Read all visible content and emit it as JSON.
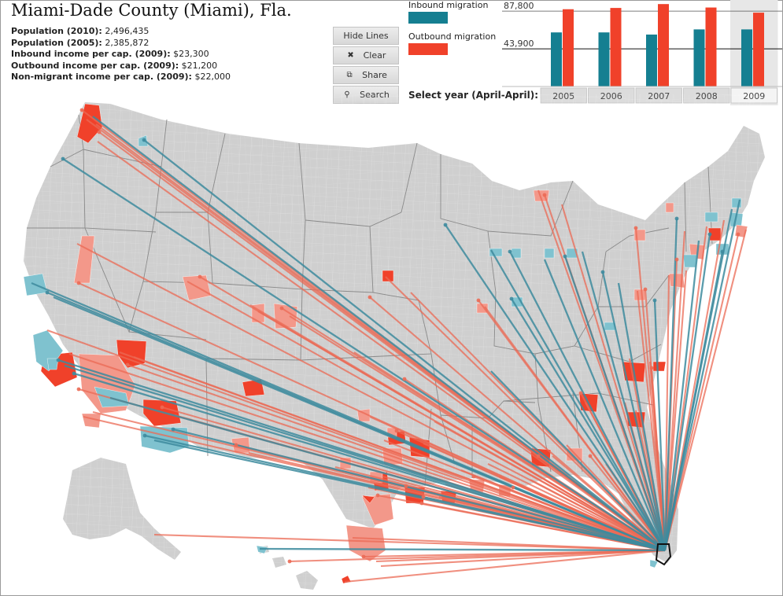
{
  "header": {
    "title": "Miami-Dade County (Miami), Fla.",
    "stats": [
      {
        "label": "Population (2010):",
        "value": "2,496,435"
      },
      {
        "label": "Population (2005):",
        "value": "2,385,872"
      },
      {
        "label": "Inbound income per cap. (2009):",
        "value": "$23,300"
      },
      {
        "label": "Outbound income per cap. (2009):",
        "value": "$21,200"
      },
      {
        "label": "Non-migrant income per cap. (2009):",
        "value": "$22,000"
      }
    ]
  },
  "controls": {
    "hide_lines": "Hide Lines",
    "clear": "Clear",
    "clear_icon": "✖",
    "share": "Share",
    "share_icon": "⧉",
    "search": "Search",
    "search_icon": "⚲"
  },
  "legend": {
    "inbound_label": "Inbound migration",
    "outbound_label": "Outbound migration",
    "inbound_color": "#157f91",
    "outbound_color": "#f0412a"
  },
  "year_selector": {
    "label": "Select year (April-April):",
    "selected": "2009",
    "years": [
      "2005",
      "2006",
      "2007",
      "2008",
      "2009"
    ]
  },
  "chart_data": {
    "type": "bar",
    "categories": [
      "2005",
      "2006",
      "2007",
      "2008",
      "2009"
    ],
    "series": [
      {
        "name": "Inbound migration",
        "color": "#157f91",
        "values": [
          63000,
          63000,
          60500,
          66500,
          66500
        ]
      },
      {
        "name": "Outbound migration",
        "color": "#f0412a",
        "values": [
          90000,
          91500,
          96000,
          92000,
          86000
        ]
      }
    ],
    "ticks": [
      "87,800",
      "43,900"
    ],
    "tick_values": [
      87800,
      43900
    ]
  },
  "map": {
    "base_color": "#cfcfcf",
    "border_color": "#a0a0a0",
    "destination_marker_color": "#111111",
    "in_line_color": "#3e8b9e",
    "out_line_color": "#eb6a55",
    "light_in": "#7fc2cf",
    "light_out": "#f3988a"
  }
}
